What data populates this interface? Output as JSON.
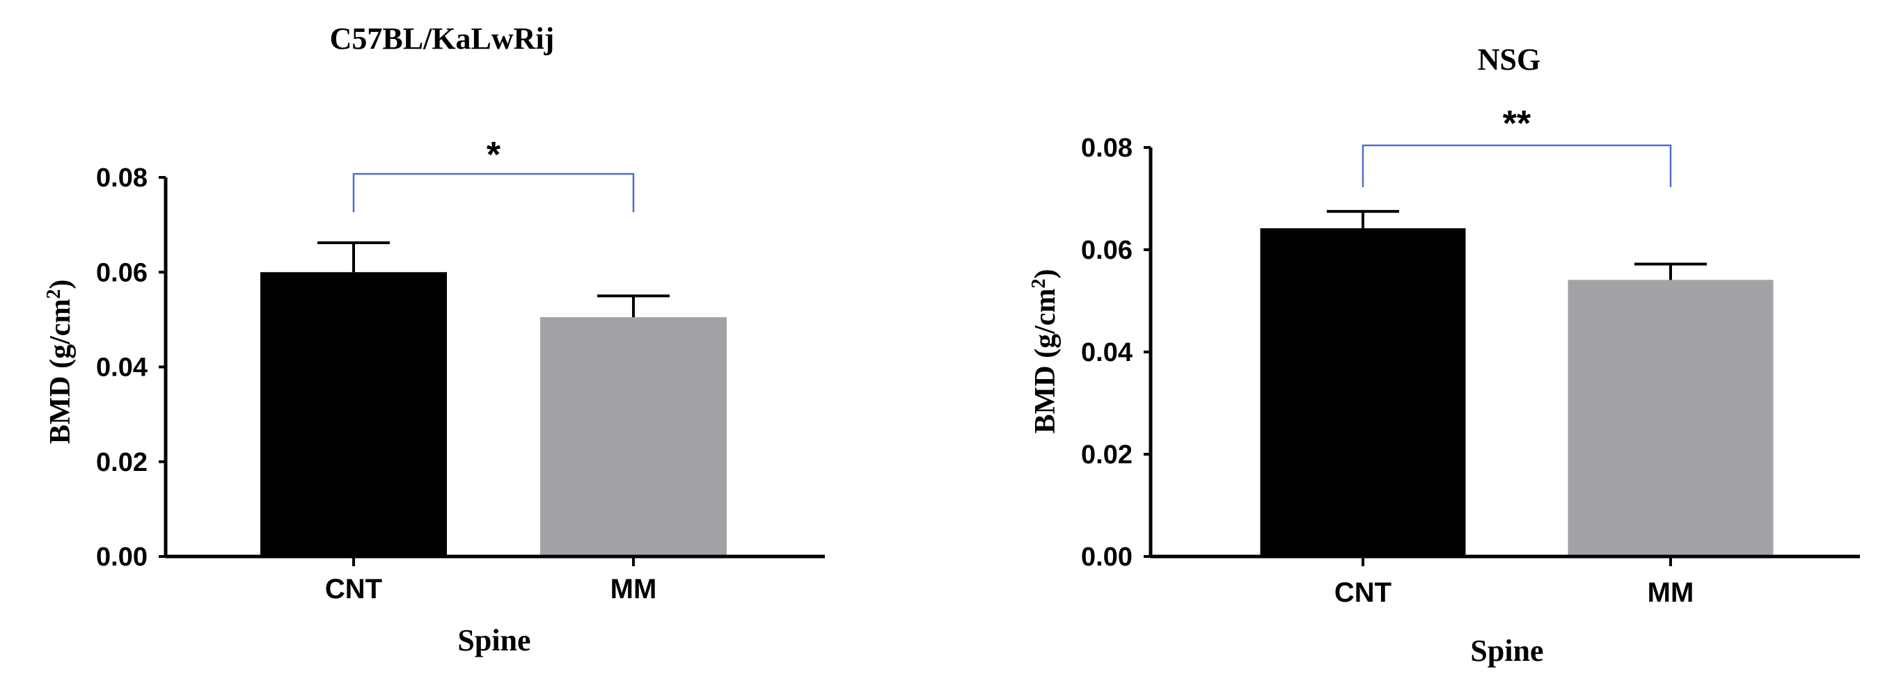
{
  "chart_data": [
    {
      "type": "bar",
      "title": "C57BL/KaLwRij",
      "xlabel": "Spine",
      "ylabel": "BMD (g/cm",
      "ylabel_sup": "2",
      "ylabel_close": ")",
      "ylim": [
        0,
        0.08
      ],
      "yticks": [
        "0.00",
        "0.02",
        "0.04",
        "0.06",
        "0.08"
      ],
      "categories": [
        "CNT",
        "MM"
      ],
      "values": [
        0.06,
        0.0505
      ],
      "error_upper": [
        0.0662,
        0.055
      ],
      "bar_colors": [
        "#000000",
        "#a3a3a7"
      ],
      "significance": {
        "from": 0,
        "to": 1,
        "label": "*",
        "color": "#4a6fc9"
      },
      "grid": false,
      "legend": "none"
    },
    {
      "type": "bar",
      "title": "NSG",
      "xlabel": "Spine",
      "ylabel": "BMD (g/cm",
      "ylabel_sup": "2",
      "ylabel_close": ")",
      "ylim": [
        0,
        0.08
      ],
      "yticks": [
        "0.00",
        "0.02",
        "0.04",
        "0.06",
        "0.08"
      ],
      "categories": [
        "CNT",
        "MM"
      ],
      "values": [
        0.0642,
        0.0541
      ],
      "error_upper": [
        0.0675,
        0.0572
      ],
      "bar_colors": [
        "#000000",
        "#a3a3a7"
      ],
      "significance": {
        "from": 0,
        "to": 1,
        "label": "**",
        "color": "#4a6fc9"
      },
      "grid": false,
      "legend": "none"
    }
  ]
}
